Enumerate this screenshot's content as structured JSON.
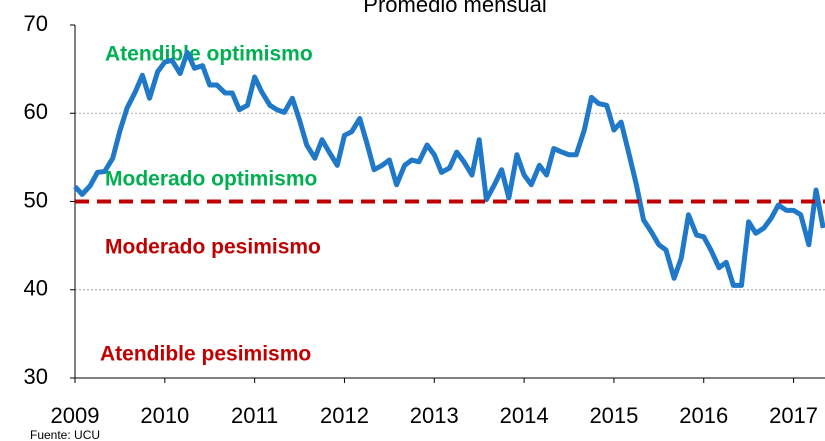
{
  "chart_data": {
    "type": "line",
    "title": "Promedio mensual",
    "source": "Fuente: UCU",
    "x": [
      2009,
      2009.08,
      2009.17,
      2009.25,
      2009.33,
      2009.42,
      2009.5,
      2009.58,
      2009.67,
      2009.75,
      2009.83,
      2009.92,
      2010,
      2010.08,
      2010.17,
      2010.25,
      2010.33,
      2010.42,
      2010.5,
      2010.58,
      2010.67,
      2010.75,
      2010.83,
      2010.92,
      2011,
      2011.08,
      2011.17,
      2011.25,
      2011.33,
      2011.42,
      2011.5,
      2011.58,
      2011.67,
      2011.75,
      2011.83,
      2011.92,
      2012,
      2012.08,
      2012.17,
      2012.25,
      2012.33,
      2012.42,
      2012.5,
      2012.58,
      2012.67,
      2012.75,
      2012.83,
      2012.92,
      2013,
      2013.08,
      2013.17,
      2013.25,
      2013.33,
      2013.42,
      2013.5,
      2013.58,
      2013.67,
      2013.75,
      2013.83,
      2013.92,
      2014,
      2014.08,
      2014.17,
      2014.25,
      2014.33,
      2014.42,
      2014.5,
      2014.58,
      2014.67,
      2014.75,
      2014.83,
      2014.92,
      2015,
      2015.08,
      2015.17,
      2015.25,
      2015.33,
      2015.42,
      2015.5,
      2015.58,
      2015.67,
      2015.75,
      2015.83,
      2015.92,
      2016,
      2016.08,
      2016.17,
      2016.25,
      2016.33,
      2016.42,
      2016.5,
      2016.58,
      2016.67,
      2016.75,
      2016.83,
      2016.92,
      2017,
      2017.08,
      2017.17,
      2017.25,
      2017.33
    ],
    "series": [
      {
        "color": "#1f78c8",
        "values": [
          51.7,
          50.8,
          51.8,
          53.3,
          53.4,
          54.9,
          58,
          60.6,
          62.4,
          64.3,
          61.7,
          64.7,
          65.8,
          66,
          64.5,
          66.9,
          65.1,
          65.4,
          63.2,
          63.2,
          62.3,
          62.3,
          60.4,
          60.9,
          64.1,
          62.4,
          60.9,
          60.4,
          60.1,
          61.7,
          59.2,
          56.4,
          54.9,
          57,
          55.6,
          54.1,
          57.5,
          57.9,
          59.4,
          56.6,
          53.6,
          54.1,
          54.7,
          51.9,
          54.1,
          54.7,
          54.5,
          56.4,
          55.3,
          53.3,
          53.8,
          55.6,
          54.5,
          53,
          57,
          50.2,
          51.9,
          53.6,
          50.4,
          55.3,
          53,
          51.9,
          54.1,
          53,
          56,
          55.6,
          55.3,
          55.3,
          58.1,
          61.8,
          61.1,
          60.9,
          58.1,
          59,
          55.3,
          51.9,
          47.9,
          46.5,
          45.1,
          44.5,
          41.3,
          43.6,
          48.5,
          46.2,
          46,
          44.5,
          42.5,
          43.1,
          40.5,
          40.5,
          47.7,
          46.4,
          47,
          48.1,
          49.6,
          49,
          49,
          48.5,
          45.1,
          51.3,
          47
        ]
      }
    ],
    "xlim": [
      2009,
      2017.35
    ],
    "xticks": [
      2009,
      2010,
      2011,
      2012,
      2013,
      2014,
      2015,
      2016,
      2017
    ],
    "ylim": [
      30,
      70
    ],
    "yticks": [
      30,
      40,
      50,
      60,
      70
    ],
    "grid_lines": [
      40,
      60
    ],
    "reference_line": {
      "value": 50,
      "color": "#c00000"
    },
    "annotations": [
      {
        "text": "Atendible optimismo",
        "color": "#00b050"
      },
      {
        "text": "Moderado optimismo",
        "color": "#00b050"
      },
      {
        "text": "Moderado pesimismo",
        "color": "#c00000"
      },
      {
        "text": "Atendible pesimismo",
        "color": "#c00000"
      }
    ]
  }
}
